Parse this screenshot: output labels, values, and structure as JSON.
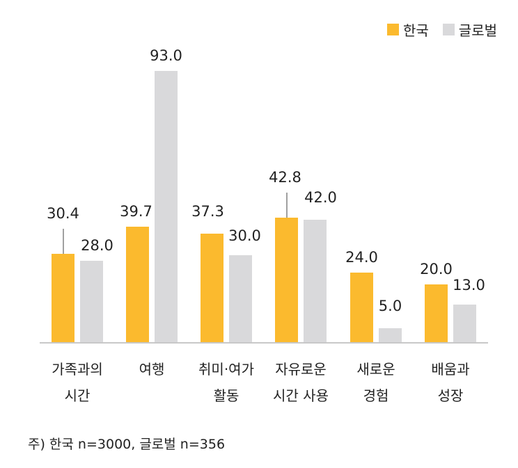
{
  "legend": {
    "items": [
      {
        "label": "한국",
        "color": "#FBBA2E"
      },
      {
        "label": "글로벌",
        "color": "#D9D9DB"
      }
    ]
  },
  "footnote": "주) 한국 n=3000, 글로벌 n=356",
  "colors": {
    "korea": "#FBBA2E",
    "global": "#D9D9DB",
    "axis": "#C8C8C8",
    "leader": "#A0A0A0"
  },
  "chart_data": {
    "type": "bar",
    "title": "",
    "xlabel": "",
    "ylabel": "",
    "categories": [
      "가족과의 시간",
      "여행",
      "취미·여가 활동",
      "자유로운 시간 사용",
      "새로운 경험",
      "배움과 성장"
    ],
    "category_lines": [
      [
        "가족과의",
        "시간"
      ],
      [
        "여행",
        ""
      ],
      [
        "취미·여가",
        "활동"
      ],
      [
        "자유로운",
        "시간 사용"
      ],
      [
        "새로운",
        "경험"
      ],
      [
        "배움과",
        "성장"
      ]
    ],
    "series": [
      {
        "name": "한국",
        "values": [
          30.4,
          39.7,
          37.3,
          42.8,
          24.0,
          20.0
        ],
        "labels": [
          "30.4",
          "39.7",
          "37.3",
          "42.8",
          "24.0",
          "20.0"
        ]
      },
      {
        "name": "글로벌",
        "values": [
          28.0,
          93.0,
          30.0,
          42.0,
          5.0,
          13.0
        ],
        "labels": [
          "28.0",
          "93.0",
          "30.0",
          "42.0",
          "5.0",
          "13.0"
        ]
      }
    ],
    "ylim": [
      0,
      93
    ],
    "grid": false,
    "legend_position": "top-right"
  }
}
